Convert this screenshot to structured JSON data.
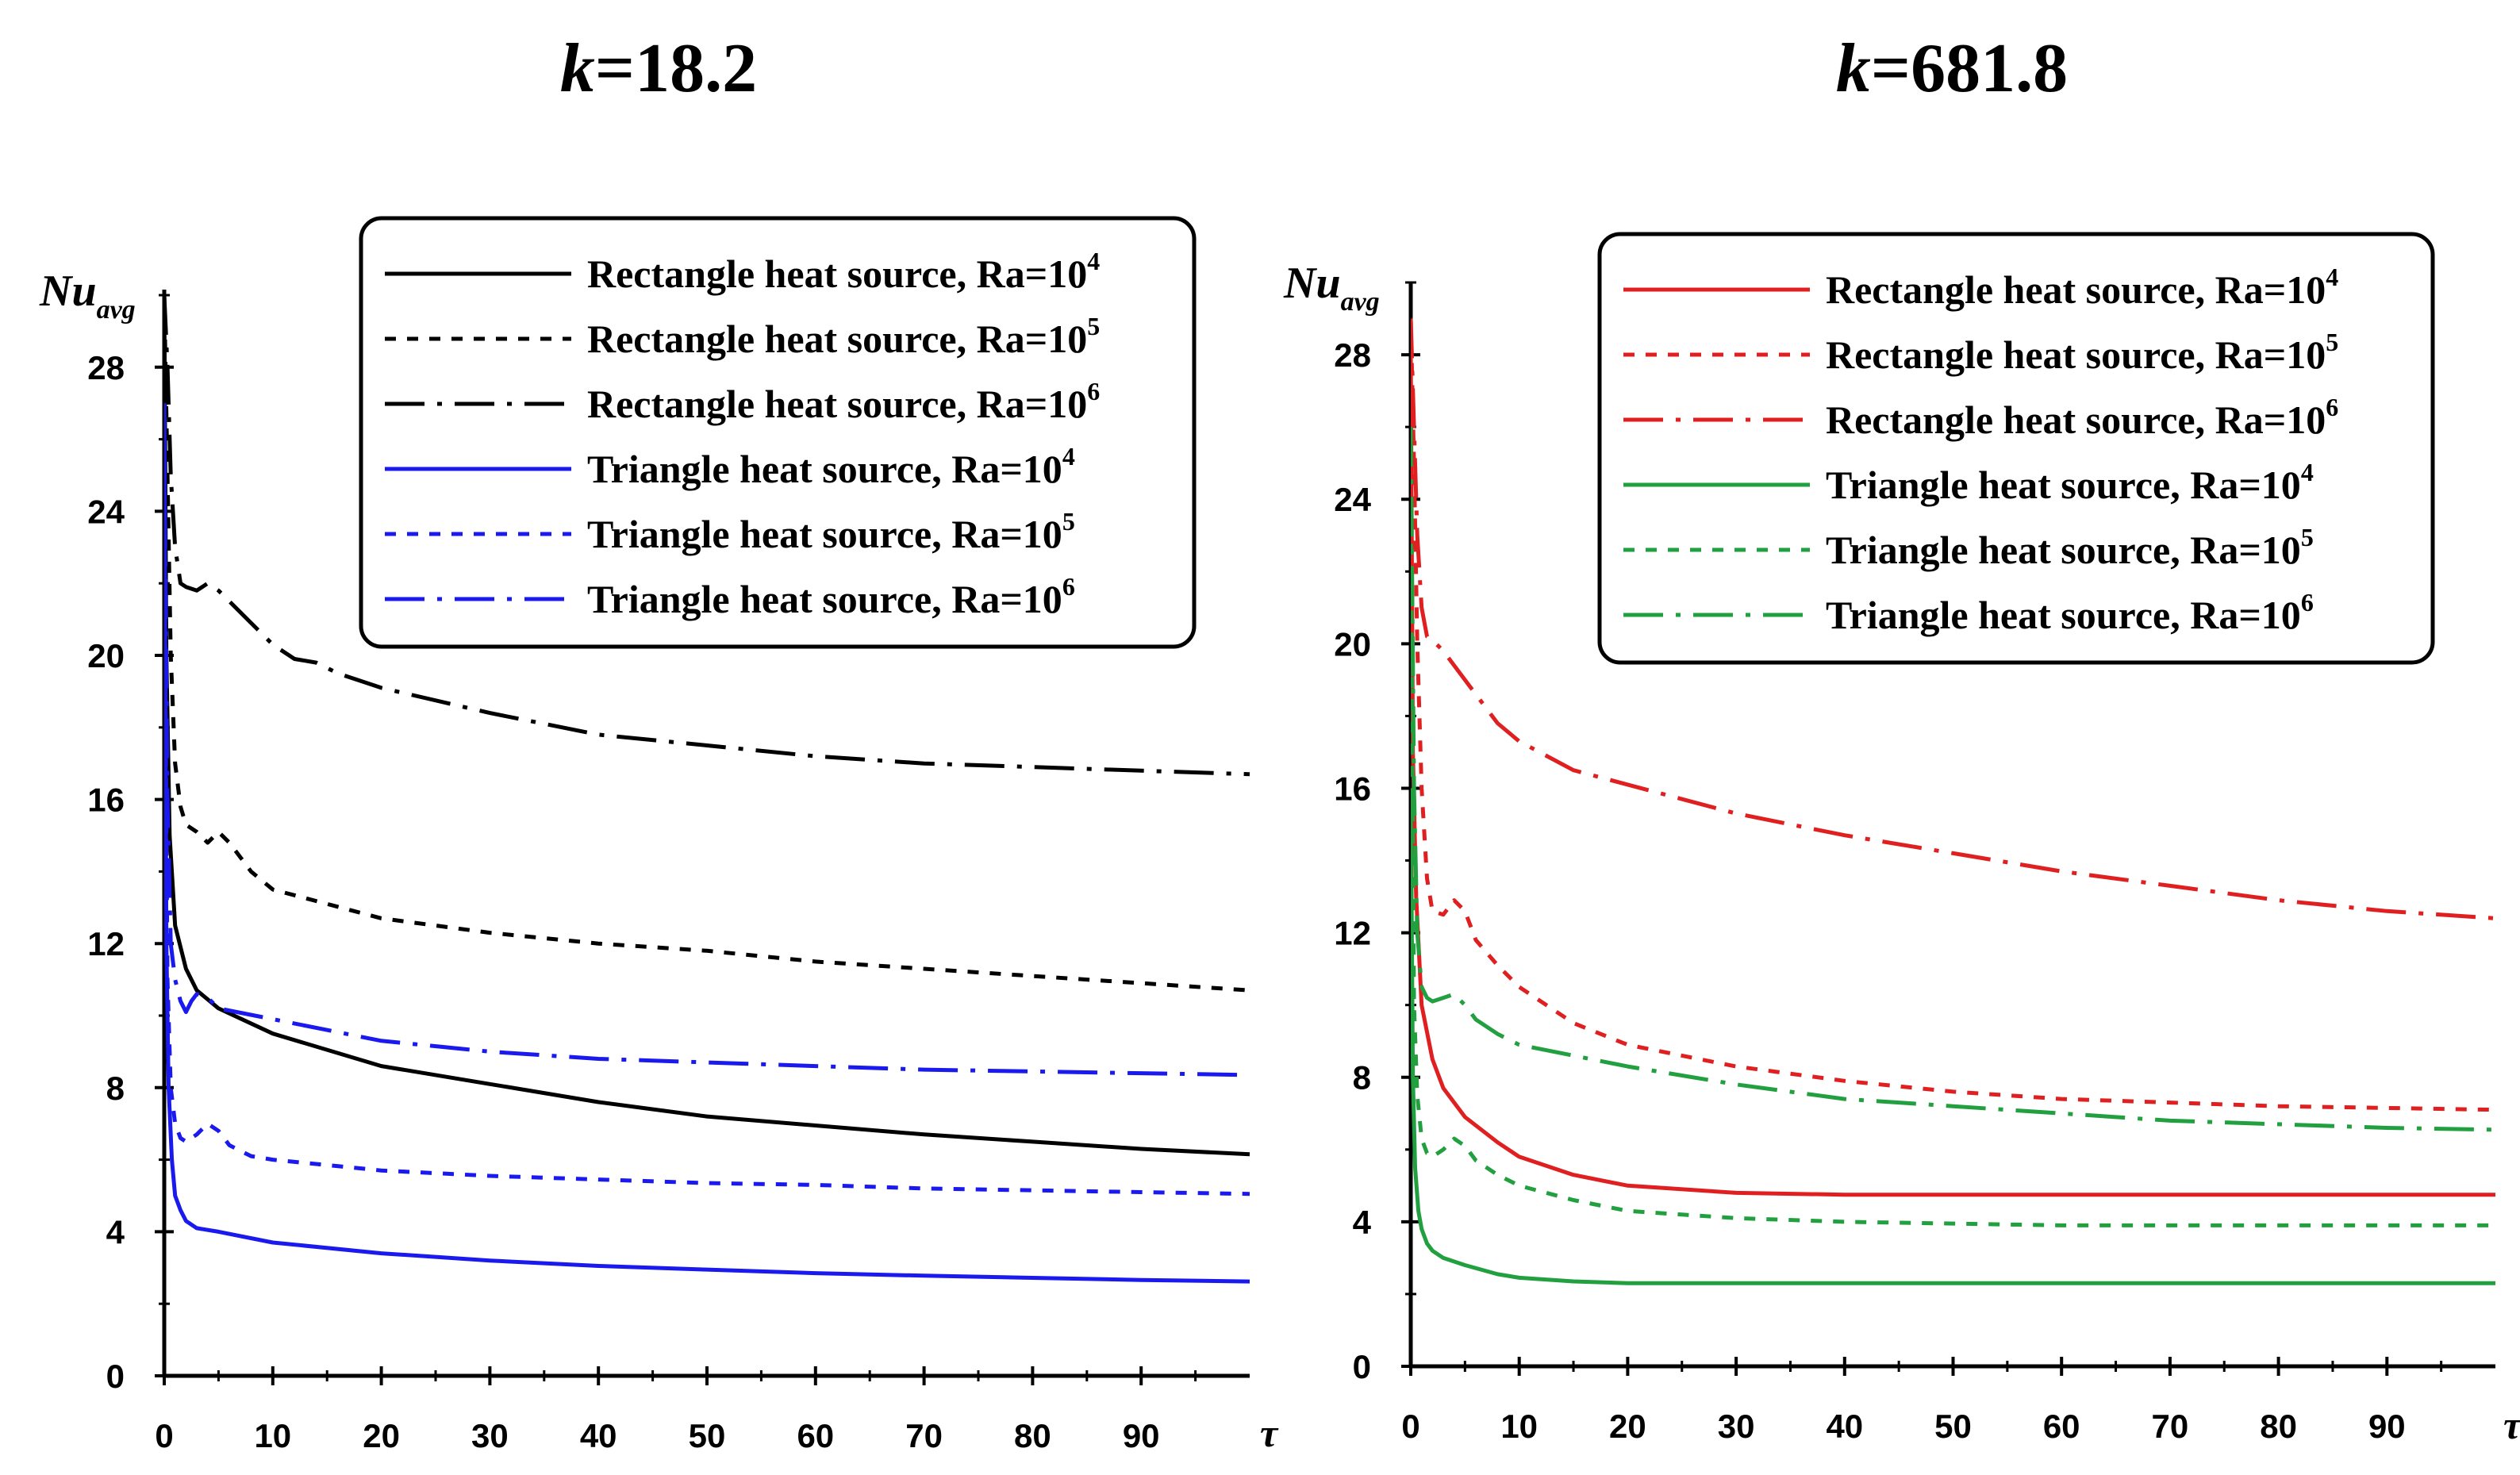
{
  "chart_data": [
    {
      "type": "line",
      "title_prefix": "k",
      "title_value": "=18.2",
      "ylabel_main": "Nu",
      "ylabel_sub": "avg",
      "xlabel": "τ",
      "xlim": [
        0,
        100
      ],
      "ylim": [
        0,
        30
      ],
      "xticks": [
        0,
        10,
        20,
        30,
        40,
        50,
        60,
        70,
        80,
        90
      ],
      "yticks": [
        0,
        4,
        8,
        12,
        16,
        20,
        24,
        28
      ],
      "series": [
        {
          "name": "Rectangle heat source, Ra=10",
          "exp": "4",
          "color": "#000000",
          "dash": "solid",
          "x": [
            0,
            0.2,
            0.5,
            1,
            2,
            3,
            5,
            10,
            20,
            30,
            40,
            50,
            60,
            70,
            80,
            90,
            100
          ],
          "y": [
            30,
            20,
            15,
            12.5,
            11.3,
            10.7,
            10.2,
            9.5,
            8.6,
            8.1,
            7.6,
            7.2,
            6.95,
            6.7,
            6.5,
            6.3,
            6.15
          ]
        },
        {
          "name": "Rectangle heat source, Ra=10",
          "exp": "5",
          "color": "#000000",
          "dash": "dash",
          "x": [
            0,
            0.3,
            0.6,
            1,
            1.5,
            2,
            3,
            4,
            5,
            6,
            7,
            8,
            10,
            20,
            30,
            40,
            50,
            60,
            70,
            80,
            90,
            100
          ],
          "y": [
            30,
            25,
            20,
            17,
            15.8,
            15.3,
            15.1,
            14.8,
            15.1,
            14.8,
            14.4,
            14,
            13.5,
            12.7,
            12.3,
            12,
            11.8,
            11.5,
            11.3,
            11.1,
            10.9,
            10.7
          ]
        },
        {
          "name": "Rectangle heat source, Ra=10",
          "exp": "6",
          "color": "#000000",
          "dash": "dashdot",
          "x": [
            0,
            0.3,
            0.6,
            1,
            1.5,
            2,
            3,
            4,
            5,
            6,
            8,
            10,
            12,
            14,
            16,
            20,
            30,
            40,
            50,
            60,
            70,
            80,
            90,
            100
          ],
          "y": [
            30,
            28,
            25,
            23,
            22,
            21.9,
            21.8,
            22,
            21.8,
            21.5,
            20.9,
            20.3,
            19.9,
            19.8,
            19.5,
            19.1,
            18.4,
            17.8,
            17.5,
            17.2,
            17,
            16.9,
            16.8,
            16.7
          ]
        },
        {
          "name": "Triangle heat source, Ra=10",
          "exp": "4",
          "color": "#1a1aee",
          "dash": "solid",
          "x": [
            0,
            0.2,
            0.4,
            0.7,
            1,
            1.5,
            2,
            3,
            5,
            10,
            20,
            30,
            40,
            50,
            60,
            70,
            80,
            90,
            100
          ],
          "y": [
            27,
            12,
            8,
            6,
            5,
            4.6,
            4.3,
            4.1,
            4.0,
            3.7,
            3.4,
            3.2,
            3.05,
            2.95,
            2.85,
            2.78,
            2.72,
            2.66,
            2.62
          ]
        },
        {
          "name": "Triangle heat source, Ra=10",
          "exp": "5",
          "color": "#1a1aee",
          "dash": "dash",
          "x": [
            0,
            0.3,
            0.6,
            1,
            1.5,
            2,
            3,
            4,
            5,
            6,
            8,
            10,
            20,
            30,
            40,
            50,
            60,
            70,
            80,
            90,
            100
          ],
          "y": [
            24,
            11,
            8,
            7,
            6.6,
            6.5,
            6.7,
            7.0,
            6.8,
            6.4,
            6.1,
            6.0,
            5.7,
            5.55,
            5.45,
            5.35,
            5.3,
            5.2,
            5.15,
            5.1,
            5.05
          ]
        },
        {
          "name": "Triangle heat source, Ra=10",
          "exp": "6",
          "color": "#1a1aee",
          "dash": "dashdot",
          "x": [
            0,
            0.3,
            0.6,
            1,
            1.5,
            2,
            2.5,
            3,
            4,
            5,
            10,
            20,
            30,
            40,
            50,
            60,
            70,
            80,
            90,
            100
          ],
          "y": [
            26,
            16,
            12,
            11,
            10.4,
            10.1,
            10.4,
            10.6,
            10.5,
            10.2,
            9.9,
            9.3,
            9.0,
            8.8,
            8.7,
            8.6,
            8.5,
            8.45,
            8.4,
            8.35
          ]
        }
      ]
    },
    {
      "type": "line",
      "title_prefix": "k",
      "title_value": "=681.8",
      "ylabel_main": "Nu",
      "ylabel_sub": "avg",
      "xlabel": "τ",
      "xlim": [
        0,
        100
      ],
      "ylim": [
        0,
        30
      ],
      "xticks": [
        0,
        10,
        20,
        30,
        40,
        50,
        60,
        70,
        80,
        90
      ],
      "yticks": [
        0,
        4,
        8,
        12,
        16,
        20,
        24,
        28
      ],
      "series": [
        {
          "name": "Rectangle heat source, Ra=10",
          "exp": "4",
          "color": "#e02020",
          "dash": "solid",
          "x": [
            0,
            0.2,
            0.5,
            1,
            2,
            3,
            5,
            8,
            10,
            15,
            20,
            30,
            40,
            50,
            60,
            70,
            80,
            90,
            100
          ],
          "y": [
            28,
            17,
            13,
            10,
            8.5,
            7.7,
            6.9,
            6.2,
            5.8,
            5.3,
            5.0,
            4.8,
            4.75,
            4.75,
            4.75,
            4.75,
            4.75,
            4.75,
            4.75
          ]
        },
        {
          "name": "Rectangle heat source, Ra=10",
          "exp": "5",
          "color": "#e02020",
          "dash": "dash",
          "x": [
            0,
            0.3,
            0.6,
            1,
            1.5,
            2,
            3,
            4,
            5,
            6,
            8,
            10,
            15,
            20,
            30,
            40,
            50,
            60,
            70,
            80,
            90,
            100
          ],
          "y": [
            29,
            25,
            20,
            16,
            13.5,
            12.6,
            12.5,
            12.9,
            12.6,
            11.8,
            11.1,
            10.5,
            9.5,
            8.9,
            8.3,
            7.9,
            7.6,
            7.4,
            7.3,
            7.2,
            7.15,
            7.1
          ]
        },
        {
          "name": "Rectangle heat source, Ra=10",
          "exp": "6",
          "color": "#e02020",
          "dash": "dashdot",
          "x": [
            0,
            0.3,
            0.6,
            1,
            1.5,
            2,
            3,
            5,
            8,
            10,
            15,
            20,
            30,
            40,
            50,
            60,
            70,
            80,
            90,
            100
          ],
          "y": [
            29,
            26,
            23,
            21,
            20.2,
            20.1,
            19.8,
            19,
            17.8,
            17.3,
            16.5,
            16.1,
            15.3,
            14.7,
            14.2,
            13.7,
            13.3,
            12.9,
            12.6,
            12.4
          ]
        },
        {
          "name": "Triangle heat source, Ra=10",
          "exp": "4",
          "color": "#22a040",
          "dash": "solid",
          "x": [
            0,
            0.2,
            0.4,
            0.7,
            1,
            1.5,
            2,
            3,
            5,
            8,
            10,
            15,
            20,
            30,
            40,
            50,
            60,
            70,
            80,
            90,
            100
          ],
          "y": [
            16,
            8,
            5.5,
            4.3,
            3.8,
            3.4,
            3.2,
            3.0,
            2.8,
            2.55,
            2.45,
            2.35,
            2.3,
            2.3,
            2.3,
            2.3,
            2.3,
            2.3,
            2.3,
            2.3,
            2.3
          ]
        },
        {
          "name": "Triangle heat source, Ra=10",
          "exp": "5",
          "color": "#22a040",
          "dash": "dash",
          "x": [
            0,
            0.3,
            0.6,
            1,
            1.5,
            2,
            3,
            4,
            5,
            6,
            8,
            10,
            15,
            20,
            30,
            40,
            50,
            60,
            70,
            80,
            90,
            100
          ],
          "y": [
            24,
            10,
            7.5,
            6.3,
            5.9,
            5.8,
            6.0,
            6.3,
            6.1,
            5.7,
            5.3,
            5.0,
            4.6,
            4.3,
            4.1,
            4.0,
            3.95,
            3.9,
            3.9,
            3.9,
            3.9,
            3.9
          ]
        },
        {
          "name": "Triangle heat source, Ra=10",
          "exp": "6",
          "color": "#22a040",
          "dash": "dashdot",
          "x": [
            0,
            0.3,
            0.6,
            1,
            1.5,
            2,
            3,
            4,
            5,
            6,
            8,
            10,
            15,
            20,
            30,
            40,
            50,
            60,
            70,
            80,
            90,
            100
          ],
          "y": [
            26,
            16,
            12,
            10.5,
            10.2,
            10.1,
            10.2,
            10.3,
            10.0,
            9.6,
            9.2,
            8.9,
            8.6,
            8.3,
            7.8,
            7.4,
            7.2,
            7.0,
            6.8,
            6.7,
            6.6,
            6.55
          ]
        }
      ]
    }
  ]
}
